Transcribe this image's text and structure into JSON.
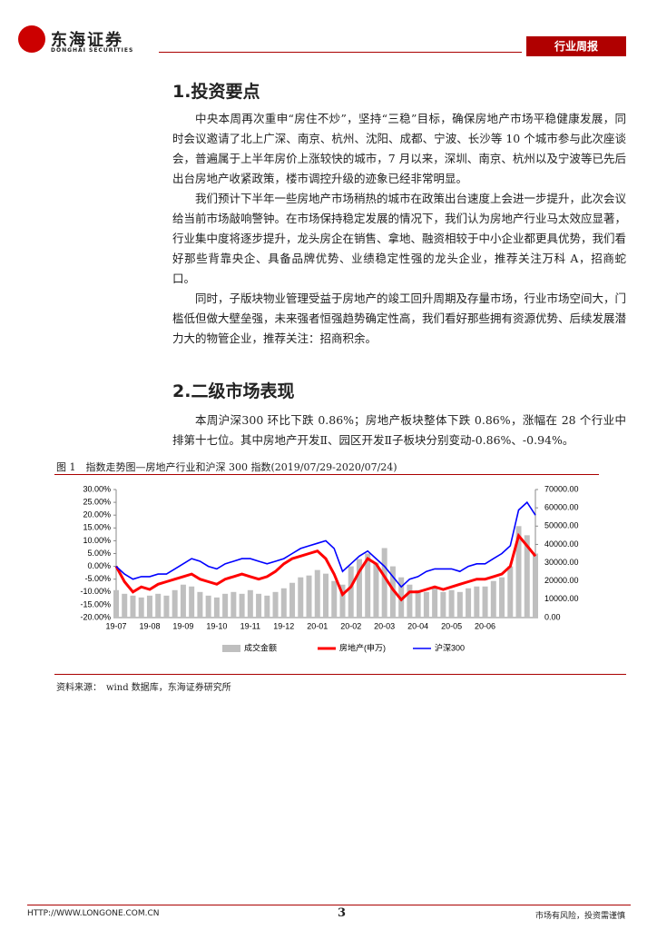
{
  "header": {
    "logo": "东海证券",
    "logo_en": "DONGHAI SECURITIES",
    "tag": "行业周报"
  },
  "sections": [
    {
      "title": "1.投资要点",
      "paragraphs": [
        "中央本周再次重申“房住不炒”，坚持“三稳”目标，确保房地产市场平稳健康发展，同时会议邀请了北上广深、南京、杭州、沈阳、成都、宁波、长沙等 10 个城市参与此次座谈会，普遍属于上半年房价上涨较快的城市，7 月以来，深圳、南京、杭州以及宁波等已先后出台房地产收紧政策，楼市调控升级的迹象已经非常明显。",
        "我们预计下半年一些房地产市场稍热的城市在政策出台速度上会进一步提升，此次会议给当前市场敲响警钟。在市场保持稳定发展的情况下，我们认为房地产行业马太效应显著，行业集中度将逐步提升，龙头房企在销售、拿地、融资相较于中小企业都更具优势，我们看好那些背靠央企、具备品牌优势、业绩稳定性强的龙头企业，推荐关注万科 A，招商蛇口。",
        "同时，子版块物业管理受益于房地产的竣工回升周期及存量市场，行业市场空间大，门槛低但做大壁垒强，未来强者恒强趋势确定性高，我们看好那些拥有资源优势、后续发展潜力大的物管企业，推荐关注：招商积余。"
      ]
    },
    {
      "title": "2.二级市场表现",
      "paragraphs": [
        "本周沪深300 环比下跌 0.86%；房地产板块整体下跌 0.86%，涨幅在 28 个行业中排第十七位。其中房地产开发Ⅱ、园区开发Ⅱ子板块分别变动-0.86%、-0.94%。"
      ]
    }
  ],
  "figure": {
    "caption": "图 1　指数走势图—房地产行业和沪深 300 指数(2019/07/29-2020/07/24)",
    "source": "资料来源：　wind 数据库，东海证券研究所"
  },
  "footer": {
    "url": "HTTP://WWW.LONGONE.COM.CN",
    "page": "3",
    "note": "市场有风险，投资需谨慎"
  },
  "chart_data": {
    "type": "combo",
    "categories": [
      "19-07",
      null,
      null,
      null,
      "19-08",
      null,
      null,
      null,
      "19-09",
      null,
      null,
      null,
      "19-10",
      null,
      null,
      null,
      "19-11",
      null,
      null,
      null,
      "19-12",
      null,
      null,
      null,
      "20-01",
      null,
      null,
      null,
      "20-02",
      null,
      null,
      null,
      "20-03",
      null,
      null,
      null,
      "20-04",
      null,
      null,
      null,
      "20-05",
      null,
      null,
      null,
      "20-06",
      null,
      null,
      null,
      null,
      null,
      null
    ],
    "ylim": [
      -20,
      30
    ],
    "yticks": [
      {
        "value": -20,
        "label": "-20.00%"
      },
      {
        "value": -15,
        "label": "-15.00%"
      },
      {
        "value": -10,
        "label": "-10.00%"
      },
      {
        "value": -5,
        "label": "-5.00%"
      },
      {
        "value": 0,
        "label": "0.00%"
      },
      {
        "value": 5,
        "label": "5.00%"
      },
      {
        "value": 10,
        "label": "10.00%"
      },
      {
        "value": 15,
        "label": "15.00%"
      },
      {
        "value": 20,
        "label": "20.00%"
      },
      {
        "value": 25,
        "label": "25.00%"
      },
      {
        "value": 30,
        "label": "30.00%"
      }
    ],
    "y2lim": [
      0,
      70000
    ],
    "y2ticks": [
      {
        "value": 0,
        "label": "0.00"
      },
      {
        "value": 10000,
        "label": "10000.00"
      },
      {
        "value": 20000,
        "label": "20000.00"
      },
      {
        "value": 30000,
        "label": "30000.00"
      },
      {
        "value": 40000,
        "label": "40000.00"
      },
      {
        "value": 50000,
        "label": "50000.00"
      },
      {
        "value": 60000,
        "label": "60000.00"
      },
      {
        "value": 70000,
        "label": "70000.00"
      }
    ],
    "series": [
      {
        "name": "成交金额",
        "kind": "bar",
        "axis": "y2",
        "color": "#bfbfbf",
        "values": [
          15000,
          13000,
          12000,
          11000,
          12000,
          13000,
          12000,
          15000,
          18000,
          17000,
          14000,
          12000,
          11000,
          13000,
          14000,
          13000,
          15000,
          13000,
          12000,
          14000,
          16000,
          19000,
          22000,
          23000,
          26000,
          24000,
          20000,
          18000,
          28000,
          32000,
          35000,
          30000,
          38000,
          28000,
          22000,
          18000,
          15000,
          14000,
          16000,
          14000,
          15000,
          14000,
          16000,
          17000,
          17000,
          20000,
          22000,
          28000,
          50000,
          45000,
          35000
        ]
      },
      {
        "name": "房地产(申万)",
        "kind": "line",
        "color": "#ff0000",
        "values": [
          0,
          -6,
          -10,
          -8,
          -9,
          -7,
          -6,
          -5,
          -4,
          -3,
          -5,
          -6,
          -7,
          -5,
          -4,
          -3,
          -4,
          -5,
          -4,
          -2,
          1,
          3,
          4,
          5,
          6,
          3,
          -3,
          -11,
          -8,
          -2,
          3,
          1,
          -4,
          -9,
          -13,
          -10,
          -10,
          -9,
          -8,
          -9,
          -8,
          -7,
          -6,
          -5,
          -5,
          -4,
          -3,
          0,
          12,
          8,
          4
        ]
      },
      {
        "name": "沪深300",
        "kind": "line",
        "color": "#0000ff",
        "values": [
          0,
          -3,
          -5,
          -4,
          -4,
          -3,
          -3,
          -1,
          1,
          3,
          2,
          0,
          -1,
          1,
          2,
          3,
          3,
          2,
          1,
          2,
          3,
          5,
          7,
          8,
          9,
          10,
          7,
          -2,
          1,
          4,
          6,
          3,
          0,
          -4,
          -8,
          -5,
          -4,
          -2,
          -1,
          -1,
          -1,
          -2,
          0,
          1,
          1,
          3,
          5,
          8,
          22,
          25,
          20
        ]
      }
    ]
  }
}
